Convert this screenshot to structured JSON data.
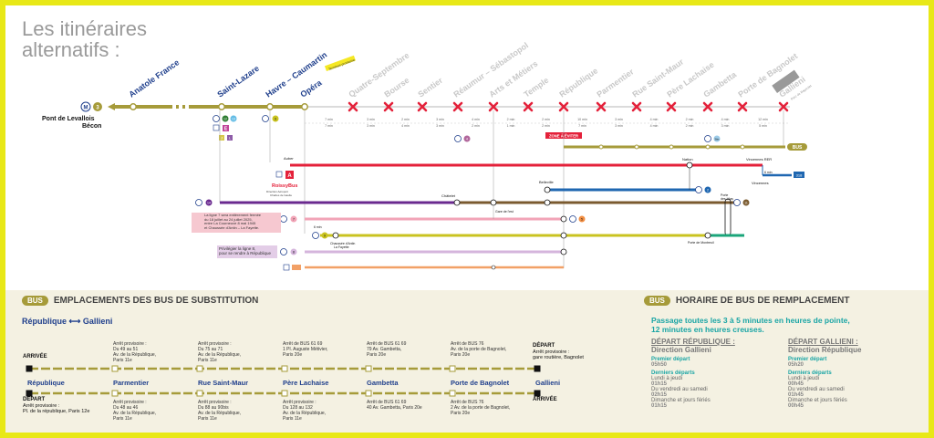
{
  "title": "Les itinéraires\nalternatifs :",
  "origin": {
    "line_number": "3",
    "name1": "Pont de Levallois",
    "name2": "Bécon"
  },
  "line_stations": [
    {
      "name": "Anatole France",
      "closed": false
    },
    {
      "name": "Saint-Lazare",
      "closed": false
    },
    {
      "name": "Havre – Caumartin",
      "closed": false
    },
    {
      "name": "Opéra",
      "closed": false
    },
    {
      "name": "Quatre-Septembre",
      "closed": true
    },
    {
      "name": "Bourse",
      "closed": true
    },
    {
      "name": "Sentier",
      "closed": true
    },
    {
      "name": "Réaumur – Sébastopol",
      "closed": true
    },
    {
      "name": "Arts et Métiers",
      "closed": true
    },
    {
      "name": "Temple",
      "closed": true
    },
    {
      "name": "République",
      "closed": true
    },
    {
      "name": "Parmentier",
      "closed": true
    },
    {
      "name": "Rue Saint-Maur",
      "closed": true
    },
    {
      "name": "Père Lachaise",
      "closed": true
    },
    {
      "name": "Gambetta",
      "closed": true
    },
    {
      "name": "Porte de Bagnolet",
      "closed": true
    },
    {
      "name": "Gallieni",
      "closed": true
    }
  ],
  "gallieni_sub": "Parc de Bagnolet",
  "opera_tag": "Terminus provisoire",
  "travel_times_top": [
    "7 min",
    "3 min",
    "2 min",
    "3 min",
    "4 min",
    "2 min",
    "2 min",
    "10 min",
    "3 min",
    "4 min",
    "2 min",
    "4 min",
    "12 min",
    "5 min"
  ],
  "travel_times_bottom": [
    "7 min",
    "3 min",
    "4 min",
    "3 min",
    "2 min",
    "1 min",
    "2 min",
    "7 min",
    "3 min",
    "4 min",
    "2 min",
    "3 min",
    "5 min"
  ],
  "zone": "ZONE À ÉVITER",
  "connections": {
    "saint_lazare": [
      "12",
      "13",
      "E",
      "J",
      "L"
    ],
    "havre": "9",
    "reaumur": "4",
    "gambetta": "3bis"
  },
  "labels": {
    "auber": "Auber",
    "roissybus": "RoissyBus",
    "roissy_note": "Direction Aéroport\nCharles de Gaulle",
    "chatelet": "Châtelet",
    "gare_est": "Gare de l'est",
    "belleville": "Belleville",
    "nation": "Nation",
    "vincennes_rer": "Vincennes RER",
    "vincennes": "Vincennes",
    "bus_318": "318",
    "porte_lilas": "Porte\ndes Lilas",
    "chaussee": "Chaussée d'Antin\nLa Fayette",
    "montreuil": "Porte de Montreuil",
    "six_min": "6 min",
    "rer_a": "A",
    "m14": "14",
    "m7": "7",
    "m9": "9",
    "m8": "8",
    "m5": "5",
    "m2": "2",
    "m11": "11",
    "m1": "1",
    "bus": "BUS"
  },
  "alert_text": "La ligne 7 sera entièrement fermée\ndu 18 juillet au 24 juillet 2025,\nentre La Courneuve 8 mai 1945\net Chaussée d'Antin – La Fayette.",
  "alert2_text": "Privilégier la ligne 8,\npour se rendre à République",
  "section_bus": {
    "pill": "BUS",
    "title": "EMPLACEMENTS DES BUS DE SUBSTITUTION"
  },
  "route_title": "République ⟷ Gallieni",
  "top_row": {
    "arrivee_label": "ARRIVÉE",
    "depart_label": "DÉPART",
    "depart_note": "Arrêt provisoire :\ngare routière, Bagnolet",
    "notes": [
      "Arrêt provisoire :\nDu 49 au 51\nAv. de la République,\nParis 11e",
      "Arrêt provisoire :\nDu 75 au 71\nAv. de la République,\nParis 11e",
      "Arrêt de BUS 61 69\n1 Pl. Auguste Métivier,\nParis 20e",
      "Arrêt de BUS 61 69\n79 Av. Gambetta,\nParis 20e",
      "Arrêt de BUS 76\nAv. de la porte de Bagnolet,\nParis 20e"
    ]
  },
  "stops": [
    "République",
    "Parmentier",
    "Rue Saint-Maur",
    "Père Lachaise",
    "Gambetta",
    "Porte de Bagnolet",
    "Gallieni"
  ],
  "bottom_row": {
    "depart_label": "DÉPART",
    "depart_note": "Arrêt provisoire :\nPl. de la république, Paris 12e",
    "arrivee_label": "ARRIVÉE",
    "notes": [
      "Arrêt provisoire :\nDu 48 au 46\nAv. de la République,\nParis 11e",
      "Arrêt provisoire :\nDu 88 au 90bis\nAv. de la République,\nParis 11e",
      "Arrêt provisoire :\nDu 128 au 132\nAv. de la République,\nParis 11e",
      "Arrêt de BUS 61 69\n40 Av. Gambetta, Paris 20e",
      "Arrêt de BUS 76\n2 Av. de la porte de Bagnolet,\nParis 20e"
    ]
  },
  "section_sched": {
    "pill": "BUS",
    "title": "HORAIRE DE BUS DE REMPLACEMENT"
  },
  "sched_headline": "Passage toutes les 3 à 5 minutes en heures de pointe,\n12 minutes en heures creuses.",
  "sched_cols": [
    {
      "t1": "DÉPART RÉPUBLIQUE :",
      "t2": "Direction Gallieni",
      "first_label": "Premier départ",
      "first": "05h50",
      "last_label": "Derniers départs",
      "rows": [
        {
          "sub": "Lundi à jeudi",
          "val": "01h15"
        },
        {
          "sub": "Du vendredi au samedi",
          "val": "02h15"
        },
        {
          "sub": "Dimanche et jours fériés",
          "val": "01h15"
        }
      ]
    },
    {
      "t1": "DÉPART GALLIENI :",
      "t2": "Direction République",
      "first_label": "Premier départ",
      "first": "05h20",
      "last_label": "Derniers départs",
      "rows": [
        {
          "sub": "Lundi à jeudi",
          "val": "00h45"
        },
        {
          "sub": "Du vendredi au samedi",
          "val": "01h45"
        },
        {
          "sub": "Dimanche et jours fériés",
          "val": "00h45"
        }
      ]
    }
  ],
  "colors": {
    "line3": "#a69b3a",
    "closed": "#e4213a",
    "rerA": "#e4213a",
    "m14": "#6a2a8f",
    "m7": "#f2a4b7",
    "m9": "#c9c31f",
    "m8": "#d5b5dc",
    "m5": "#f28e42",
    "m2": "#1f67b1",
    "m11": "#7a5a2f",
    "m1": "#f5cb0a",
    "teal": "#1aa5a5",
    "navy": "#1f3f8c"
  }
}
